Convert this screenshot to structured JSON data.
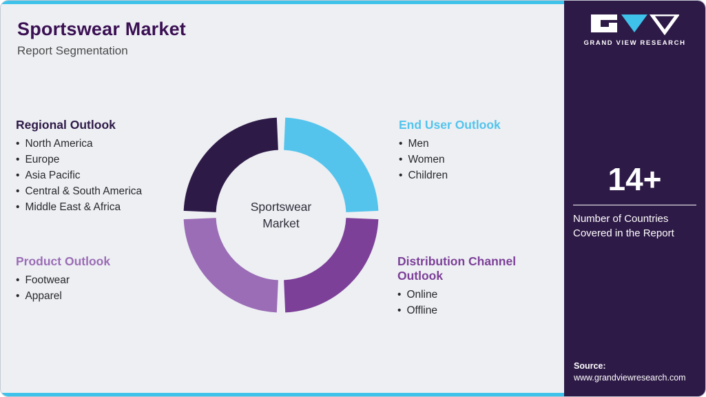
{
  "header": {
    "title": "Sportswear Market",
    "subtitle": "Report Segmentation"
  },
  "donut": {
    "center_label": "Sportswear Market",
    "gap_degrees": 2.5,
    "segments": [
      {
        "name": "end-user",
        "start": 0,
        "end": 90,
        "color": "#54c4ec"
      },
      {
        "name": "distribution",
        "start": 90,
        "end": 180,
        "color": "#7d4098"
      },
      {
        "name": "product",
        "start": 180,
        "end": 270,
        "color": "#9b6db6"
      },
      {
        "name": "regional",
        "start": 270,
        "end": 360,
        "color": "#2e1a47"
      }
    ]
  },
  "outlooks": {
    "regional": {
      "title": "Regional Outlook",
      "color": "#2e1a47",
      "items": [
        "North America",
        "Europe",
        "Asia Pacific",
        "Central & South America",
        "Middle East & Africa"
      ]
    },
    "end_user": {
      "title": "End User Outlook",
      "color": "#54c4ec",
      "items": [
        "Men",
        "Women",
        "Children"
      ]
    },
    "product": {
      "title": "Product Outlook",
      "color": "#9b6db6",
      "items": [
        "Footwear",
        "Apparel"
      ]
    },
    "distribution": {
      "title": "Distribution Channel Outlook",
      "color": "#7d4098",
      "items": [
        "Online",
        "Offline"
      ]
    }
  },
  "sidebar": {
    "brand": "GRAND VIEW RESEARCH",
    "stat_value": "14+",
    "stat_label": "Number of Countries Covered in the Report",
    "source_label": "Source:",
    "source_url": "www.grandviewresearch.com"
  },
  "colors": {
    "accent_cyan": "#3ec2ea",
    "dark_purple": "#2e1a47",
    "medium_purple": "#7d4098",
    "light_purple": "#9b6db6",
    "title_purple": "#3b1053",
    "background": "#edeff3"
  }
}
